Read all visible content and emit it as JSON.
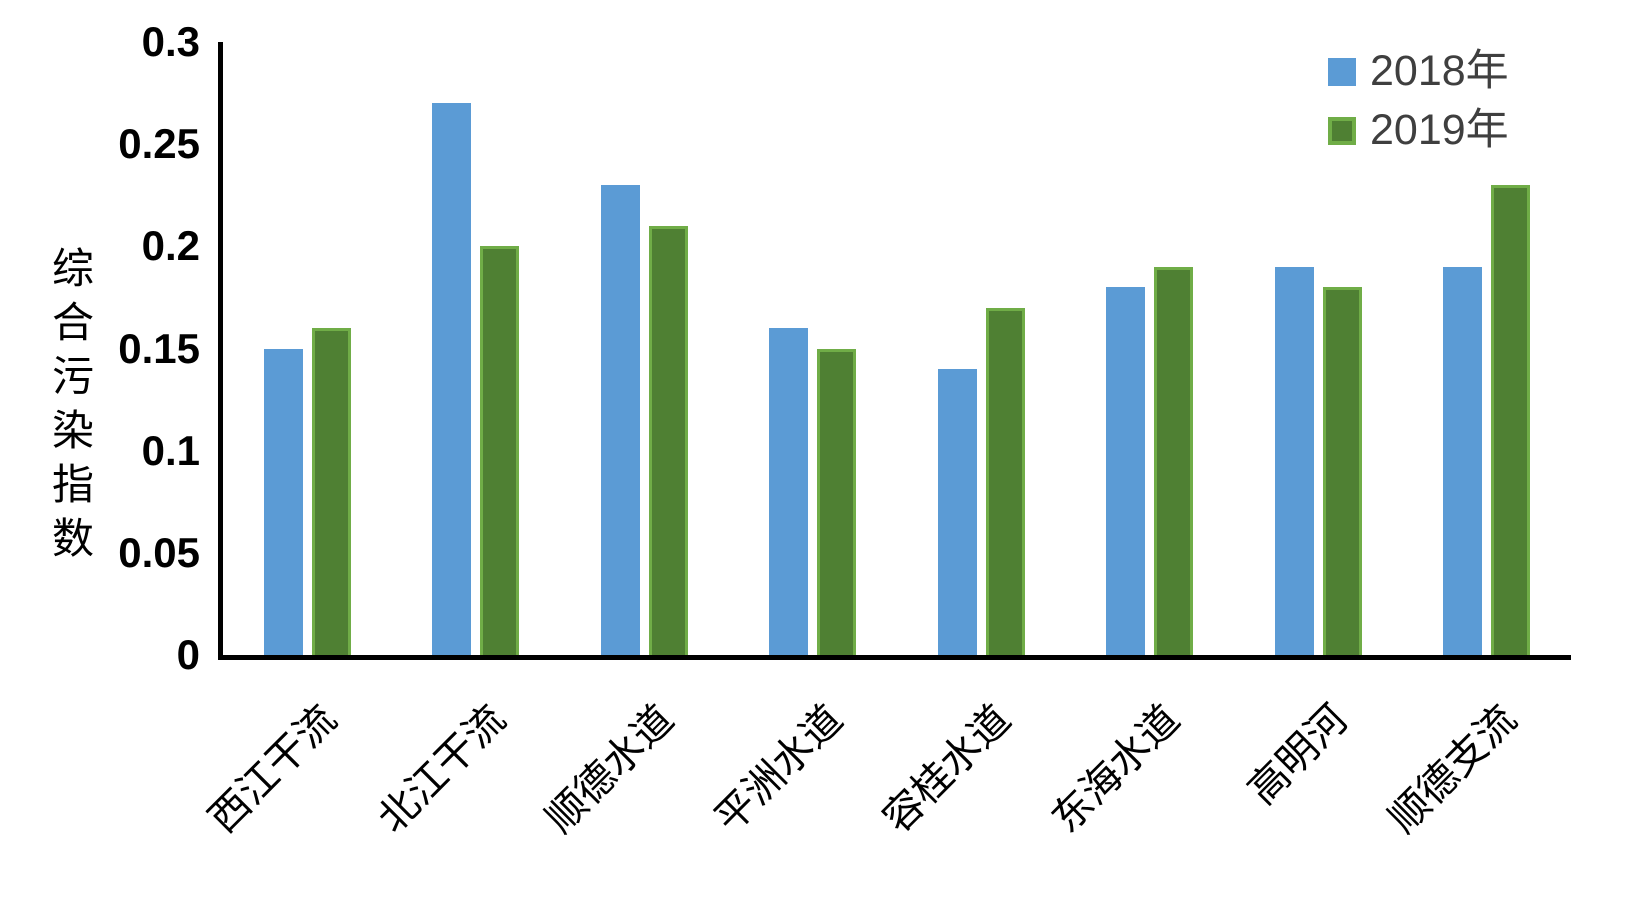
{
  "chart_data": {
    "type": "bar",
    "title": "",
    "y_axis": {
      "label": "综合污染指数",
      "tick_labels": [
        "0",
        "0.05",
        "0.1",
        "0.15",
        "0.2",
        "0.25",
        "0.3"
      ],
      "tick_values": [
        0,
        0.05,
        0.1,
        0.15,
        0.2,
        0.25,
        0.3
      ],
      "min": 0,
      "max": 0.3
    },
    "categories": [
      "西江干流",
      "北江干流",
      "顺德水道",
      "平洲水道",
      "容桂水道",
      "东海水道",
      "高明河",
      "顺德支流"
    ],
    "series": [
      {
        "name": "2018年",
        "color": "#5B9BD5",
        "values": [
          0.15,
          0.27,
          0.23,
          0.16,
          0.14,
          0.18,
          0.19,
          0.19
        ]
      },
      {
        "name": "2019年",
        "color": "#4F8033",
        "border_color": "#70AD47",
        "values": [
          0.16,
          0.2,
          0.21,
          0.15,
          0.17,
          0.19,
          0.18,
          0.23
        ]
      }
    ],
    "grid": false,
    "legend_position": "top-right",
    "background_color": "#FFFFFF",
    "axis_color": "#000000"
  }
}
